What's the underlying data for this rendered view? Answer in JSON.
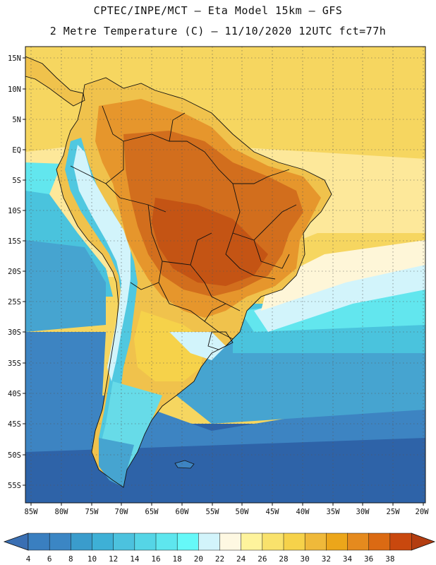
{
  "header": {
    "title_line1": "CPTEC/INPE/MCT –  Eta Model 15km – GFS",
    "title_line2": "2 Metre Temperature (C) – 11/10/2020 12UTC fct=77h"
  },
  "axes": {
    "lat_labels": [
      "15N",
      "10N",
      "5N",
      "EQ",
      "5S",
      "10S",
      "15S",
      "20S",
      "25S",
      "30S",
      "35S",
      "40S",
      "45S",
      "50S",
      "55S"
    ],
    "lon_labels": [
      "85W",
      "80W",
      "75W",
      "70W",
      "65W",
      "60W",
      "55W",
      "50W",
      "45W",
      "40W",
      "35W",
      "30W",
      "25W",
      "20W"
    ]
  },
  "colorbar": {
    "labels": [
      "4",
      "6",
      "8",
      "10",
      "12",
      "14",
      "16",
      "18",
      "20",
      "22",
      "24",
      "26",
      "28",
      "30",
      "32",
      "34",
      "36",
      "38"
    ],
    "colors": [
      "#3a7fc0",
      "#3b86c4",
      "#3a9ccc",
      "#3eb0d6",
      "#4cc2de",
      "#55d5e6",
      "#5ee6ee",
      "#66f8f8",
      "#d2f4fb",
      "#fef8e2",
      "#fef39c",
      "#f9e26c",
      "#f6d24a",
      "#efb93a",
      "#eca61a",
      "#e58a1e",
      "#db6a13",
      "#c9480e"
    ],
    "low_color": "#3a6fb3",
    "high_color": "#b33d10"
  },
  "map_colors": {
    "ocean_deep": "#2e63a8",
    "ocean_cold": "#3d84c2",
    "ocean_mid": "#46a4d0",
    "ocean_warm": "#4ac3dd",
    "ocean_cyan": "#62e6ee",
    "ocean_light": "#d2f4fb",
    "ocean_cream": "#fef6d8",
    "ocean_yellow": "#fde89a",
    "ocean_tropic": "#f6d660",
    "land_hot": "#d26e1d",
    "land_hotter": "#c45414",
    "land_warm": "#e6962c",
    "land_mild": "#f0c24c",
    "andes_cold": "#50c8e0",
    "patagonia": "#67dbe8",
    "border": "#111111"
  }
}
